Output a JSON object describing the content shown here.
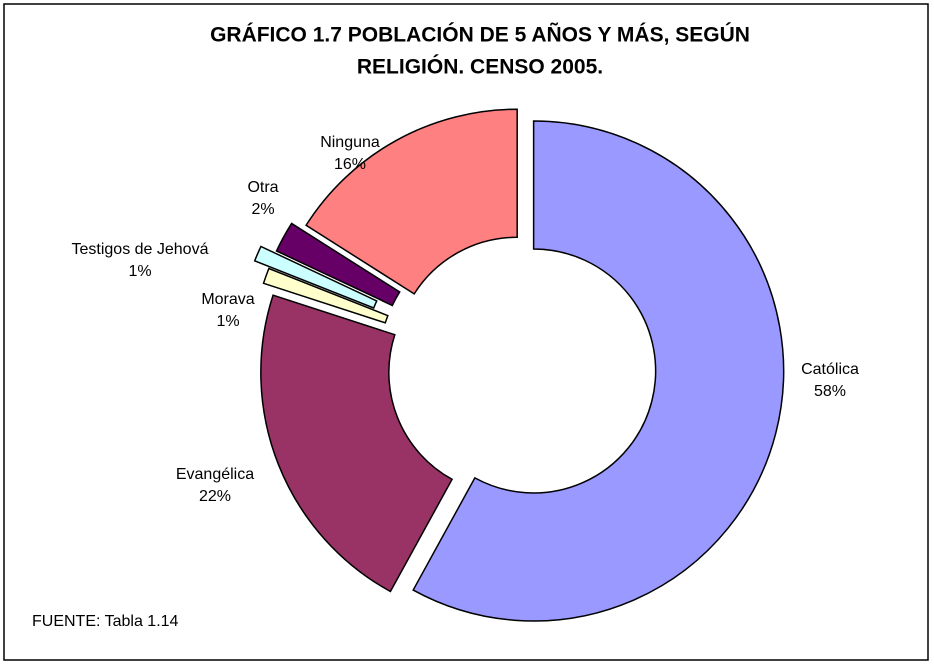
{
  "chart_data": {
    "type": "donut",
    "title": [
      "GRÁFICO 1.7  POBLACIÓN DE 5 AÑOS Y MÁS, SEGÚN",
      "RELIGIÓN. CENSO 2005."
    ],
    "categories": [
      "Católica",
      "Evangélica",
      "Morava",
      "Testigos de Jehová",
      "Otra",
      "Ninguna"
    ],
    "values": [
      58,
      22,
      1,
      1,
      2,
      16
    ],
    "value_labels": [
      "58%",
      "22%",
      "1%",
      "1%",
      "2%",
      "16%"
    ],
    "colors": [
      "#9999ff",
      "#993366",
      "#ffffcc",
      "#ccffff",
      "#660066",
      "#ff8080"
    ],
    "note": "FUENTE: Tabla 1.14"
  }
}
